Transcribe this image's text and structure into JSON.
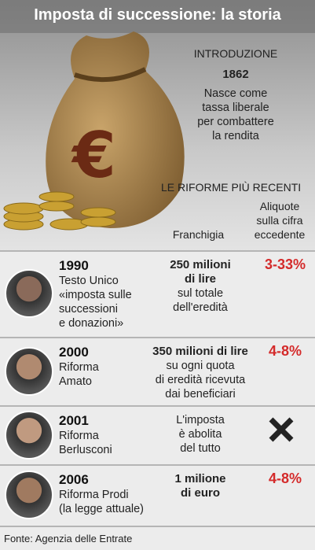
{
  "header": {
    "title": "Imposta di successione: la storia"
  },
  "intro": {
    "label": "INTRODUZIONE",
    "year": "1862",
    "text": [
      "Nasce come",
      "tassa liberale",
      "per combattere",
      "la rendita"
    ]
  },
  "reforms": {
    "heading": "LE RIFORME PIÙ RECENTI",
    "col_franchigia": "Franchigia",
    "col_aliquote": [
      "Aliquote",
      "sulla cifra",
      "eccedente"
    ],
    "rows": [
      {
        "year": "1990",
        "description": [
          "Testo Unico",
          "«imposta sulle",
          "successioni",
          "e donazioni»"
        ],
        "franchigia_bold": [
          "250 milioni",
          "di lire"
        ],
        "franchigia_text": [
          "sul totale",
          "dell'eredità"
        ],
        "aliquota": "3-33%"
      },
      {
        "year": "2000",
        "description": [
          "Riforma",
          "Amato"
        ],
        "franchigia_bold": [
          "350 milioni di lire"
        ],
        "franchigia_text": [
          "su ogni quota",
          "di eredità ricevuta",
          "dai beneficiari"
        ],
        "aliquota": "4-8%"
      },
      {
        "year": "2001",
        "description": [
          "Riforma",
          "Berlusconi"
        ],
        "franchigia_text": [
          "L'imposta",
          "è abolita",
          "del tutto"
        ]
      },
      {
        "year": "2006",
        "description": [
          "Riforma Prodi",
          "(la legge attuale)"
        ],
        "franchigia_bold": [
          "1 milione",
          "di euro"
        ],
        "aliquota": "4-8%"
      }
    ]
  },
  "source": "Fonte: Agenzia delle Entrate"
}
